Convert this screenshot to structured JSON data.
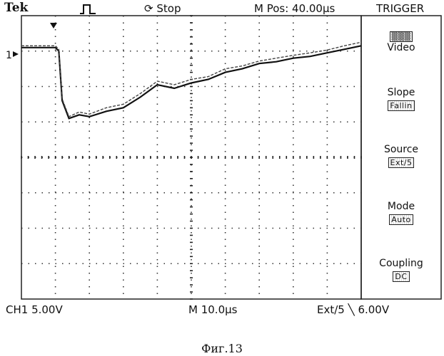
{
  "header": {
    "brand": "Tek",
    "run_status": "Stop",
    "m_pos": "M Pos: 40.00µs",
    "menu_title": "TRIGGER"
  },
  "icons": {
    "acquisition": "pulse-icon",
    "run": "stop-circle-icon",
    "trigger_position": "down-triangle-icon",
    "slope": "falling-edge-icon"
  },
  "trigger_menu": [
    {
      "label": "",
      "value": "Video",
      "selected_first": true
    },
    {
      "label": "Slope",
      "value": "Fallin"
    },
    {
      "label": "Source",
      "value": "Ext/5"
    },
    {
      "label": "Mode",
      "value": "Auto"
    },
    {
      "label": "Coupling",
      "value": "DC"
    }
  ],
  "footer": {
    "channel": "CH1  5.00V",
    "timebase": "M 10.0µs",
    "trigger_source": "Ext/5",
    "trigger_level": "6.00V"
  },
  "channel_marker": "1",
  "caption": "Фиг.13",
  "waveform": {
    "type": "line",
    "x_divisions": 10,
    "y_divisions": 8,
    "series": [
      {
        "points": [
          [
            0.0,
            0.9
          ],
          [
            1.0,
            0.9
          ],
          [
            1.1,
            1.0
          ],
          [
            1.2,
            2.4
          ],
          [
            1.4,
            2.9
          ],
          [
            1.7,
            2.8
          ],
          [
            2.0,
            2.85
          ],
          [
            2.5,
            2.7
          ],
          [
            3.0,
            2.6
          ],
          [
            3.5,
            2.3
          ],
          [
            4.0,
            1.95
          ],
          [
            4.5,
            2.05
          ],
          [
            5.0,
            1.9
          ],
          [
            5.5,
            1.8
          ],
          [
            6.0,
            1.6
          ],
          [
            6.5,
            1.5
          ],
          [
            7.0,
            1.35
          ],
          [
            7.5,
            1.3
          ],
          [
            8.0,
            1.2
          ],
          [
            8.5,
            1.15
          ],
          [
            9.0,
            1.05
          ],
          [
            9.5,
            0.95
          ],
          [
            10.0,
            0.85
          ]
        ]
      },
      {
        "points": [
          [
            0.0,
            0.85
          ],
          [
            1.0,
            0.85
          ],
          [
            1.1,
            0.95
          ],
          [
            1.2,
            2.35
          ],
          [
            1.4,
            2.85
          ],
          [
            1.7,
            2.72
          ],
          [
            2.0,
            2.78
          ],
          [
            2.5,
            2.6
          ],
          [
            3.0,
            2.5
          ],
          [
            3.5,
            2.2
          ],
          [
            4.0,
            1.85
          ],
          [
            4.5,
            1.95
          ],
          [
            5.0,
            1.8
          ],
          [
            5.5,
            1.72
          ],
          [
            6.0,
            1.5
          ],
          [
            6.5,
            1.42
          ],
          [
            7.0,
            1.28
          ],
          [
            7.5,
            1.2
          ],
          [
            8.0,
            1.12
          ],
          [
            8.5,
            1.05
          ],
          [
            9.0,
            0.97
          ],
          [
            9.5,
            0.85
          ],
          [
            10.0,
            0.75
          ]
        ]
      }
    ]
  }
}
